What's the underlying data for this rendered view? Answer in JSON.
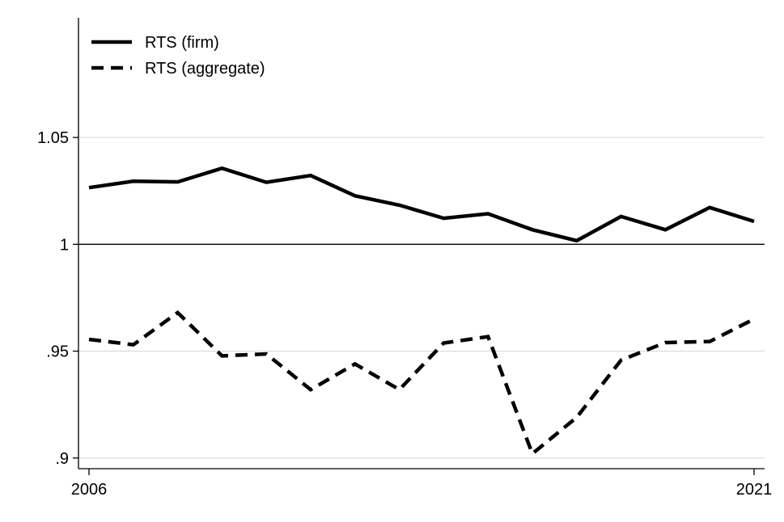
{
  "chart_data": {
    "type": "line",
    "title": "",
    "xlabel": "",
    "ylabel": "",
    "x": [
      2006,
      2007,
      2008,
      2009,
      2010,
      2011,
      2012,
      2013,
      2014,
      2015,
      2016,
      2017,
      2018,
      2019,
      2020,
      2021
    ],
    "x_ticks": [
      2006,
      2021
    ],
    "x_tick_labels": [
      "2006",
      "2021"
    ],
    "xlim": [
      2006,
      2021
    ],
    "y_ticks": [
      0.9,
      0.95,
      1.0,
      1.05
    ],
    "y_tick_labels": [
      ".9",
      ".95",
      "1",
      "1.05"
    ],
    "ylim": [
      0.895,
      1.106
    ],
    "grid": true,
    "reference_line": 1.0,
    "legend_position": "top-left",
    "series": [
      {
        "name": "RTS (firm)",
        "style": "solid",
        "color": "#000000",
        "values": [
          1.0265,
          1.0295,
          1.0292,
          1.0356,
          1.029,
          1.0322,
          1.0227,
          1.0183,
          1.0122,
          1.0143,
          1.0068,
          1.0017,
          1.013,
          1.0068,
          1.0172,
          1.0107
        ]
      },
      {
        "name": "RTS (aggregate)",
        "style": "dashed",
        "color": "#000000",
        "values": [
          0.9555,
          0.953,
          0.968,
          0.9478,
          0.9487,
          0.932,
          0.944,
          0.932,
          0.9538,
          0.9568,
          0.902,
          0.919,
          0.9458,
          0.954,
          0.9545,
          0.965
        ]
      }
    ]
  }
}
